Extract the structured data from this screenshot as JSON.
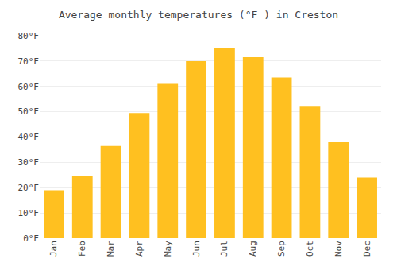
{
  "chart_data": {
    "type": "bar",
    "title": "Average monthly temperatures (°F ) in Creston",
    "categories": [
      "Jan",
      "Feb",
      "Mar",
      "Apr",
      "May",
      "Jun",
      "Jul",
      "Aug",
      "Sep",
      "Oct",
      "Nov",
      "Dec"
    ],
    "values": [
      19,
      24.5,
      36.5,
      49.5,
      61,
      70,
      75,
      71.5,
      63.5,
      52,
      38,
      24
    ],
    "color": "#FFC020",
    "ylim": [
      0,
      80
    ],
    "yticks": [
      {
        "value": 0,
        "label": "0°F"
      },
      {
        "value": 10,
        "label": "10°F"
      },
      {
        "value": 20,
        "label": "20°F"
      },
      {
        "value": 30,
        "label": "30°F"
      },
      {
        "value": 40,
        "label": "40°F"
      },
      {
        "value": 50,
        "label": "50°F"
      },
      {
        "value": 60,
        "label": "60°F"
      },
      {
        "value": 70,
        "label": "70°F"
      },
      {
        "value": 80,
        "label": "80°F"
      }
    ],
    "grid": true
  }
}
